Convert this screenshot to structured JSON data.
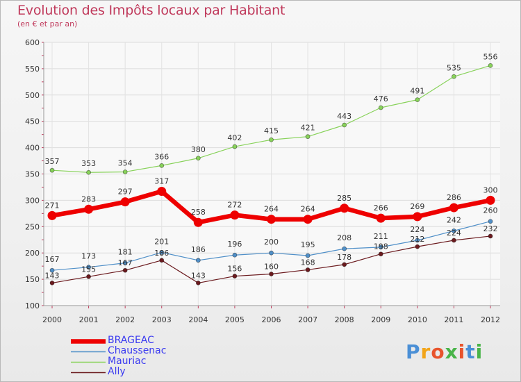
{
  "title": "Evolution des Impôts locaux par Habitant",
  "subtitle": "(en € et par an)",
  "logo_text": "Proxiti",
  "chart_data": {
    "type": "line",
    "title": "Evolution des Impôts locaux par Habitant",
    "subtitle": "(en € et par an)",
    "xlabel": "",
    "ylabel": "",
    "ylim": [
      100,
      600
    ],
    "yticks": [
      "100",
      "150",
      "200",
      "250",
      "300",
      "350",
      "400",
      "450",
      "500",
      "550",
      "600"
    ],
    "x": [
      "2000",
      "2001",
      "2002",
      "2003",
      "2004",
      "2005",
      "2006",
      "2007",
      "2008",
      "2009",
      "2010",
      "2011",
      "2012"
    ],
    "grid": true,
    "legend_position": "bottom-left",
    "series": [
      {
        "name": "BRAGEAC",
        "color": "#ee0000",
        "values": [
          271,
          283,
          297,
          317,
          258,
          272,
          264,
          264,
          285,
          266,
          269,
          286,
          300
        ]
      },
      {
        "name": "Chaussenac",
        "color": "#4f8fc8",
        "values": [
          167,
          173,
          181,
          201,
          186,
          196,
          200,
          195,
          208,
          211,
          224,
          242,
          260
        ]
      },
      {
        "name": "Mauriac",
        "color": "#88d25a",
        "values": [
          357,
          353,
          354,
          366,
          380,
          402,
          415,
          421,
          443,
          476,
          491,
          535,
          556
        ]
      },
      {
        "name": "Ally",
        "color": "#6b1a1e",
        "values": [
          143,
          155,
          167,
          186,
          143,
          156,
          160,
          168,
          178,
          198,
          212,
          224,
          232
        ]
      }
    ]
  }
}
